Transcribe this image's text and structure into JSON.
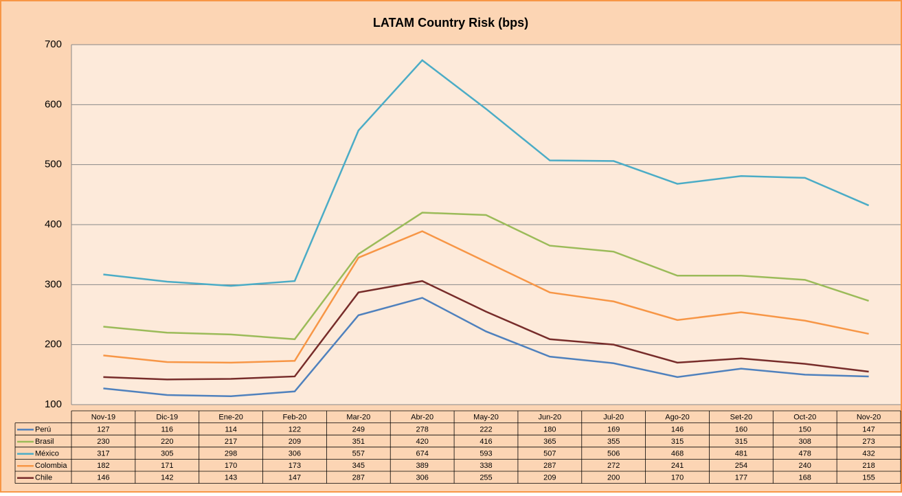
{
  "chart_data": {
    "type": "line",
    "title": "LATAM Country Risk (bps)",
    "categories": [
      "Nov-19",
      "Dic-19",
      "Ene-20",
      "Feb-20",
      "Mar-20",
      "Abr-20",
      "May-20",
      "Jun-20",
      "Jul-20",
      "Ago-20",
      "Set-20",
      "Oct-20",
      "Nov-20"
    ],
    "series": [
      {
        "name": "Perú",
        "color": "#4f81bd",
        "values": [
          127,
          116,
          114,
          122,
          249,
          278,
          222,
          180,
          169,
          146,
          160,
          150,
          147
        ]
      },
      {
        "name": "Brasil",
        "color": "#9bbb59",
        "values": [
          230,
          220,
          217,
          209,
          351,
          420,
          416,
          365,
          355,
          315,
          315,
          308,
          273
        ]
      },
      {
        "name": "México",
        "color": "#4bacc6",
        "values": [
          317,
          305,
          298,
          306,
          557,
          674,
          593,
          507,
          506,
          468,
          481,
          478,
          432
        ]
      },
      {
        "name": "Colombia",
        "color": "#f79646",
        "values": [
          182,
          171,
          170,
          173,
          345,
          389,
          338,
          287,
          272,
          241,
          254,
          240,
          218
        ]
      },
      {
        "name": "Chile",
        "color": "#772c2a",
        "values": [
          146,
          142,
          143,
          147,
          287,
          306,
          255,
          209,
          200,
          170,
          177,
          168,
          155
        ]
      }
    ],
    "ylim": [
      100,
      700
    ],
    "yticks": [
      100,
      200,
      300,
      400,
      500,
      600,
      700
    ],
    "grid": true,
    "data_table": true
  }
}
